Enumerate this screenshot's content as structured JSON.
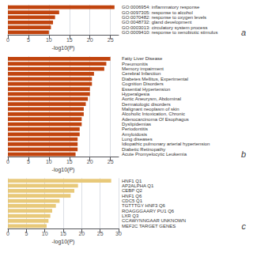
{
  "chart_data": [
    {
      "type": "bar",
      "orientation": "horizontal",
      "title": "a",
      "categories": [
        "GO:0006954: inflammatory response",
        "GO:0097305: response to alcohol",
        "GO:0070482: response to oxygen levels",
        "GO:0048732: gland development",
        "GO:0003013: circulatory system process",
        "GO:0009410: response to xenobiotic stimulus"
      ],
      "values": [
        26,
        12.5,
        11.5,
        11,
        10.5,
        10
      ],
      "color": "#c1440e",
      "xlabel": "-log10(P)",
      "xlim": [
        0,
        27
      ],
      "xticks": [
        0,
        5,
        10,
        15,
        20,
        25
      ],
      "grid": true
    },
    {
      "type": "bar",
      "orientation": "horizontal",
      "title": "b",
      "categories": [
        "Fatty Liver Disease",
        "Pneumonitis",
        "Memory impairment",
        "Cerebral Infarction",
        "Diabetes Mellitus, Experimental",
        "Cognition Disorders",
        "Essential Hypertension",
        "Hyperalgesia",
        "Aortic Aneurysm, Abdominal",
        "Dermatologic disorders",
        "Malignant neoplasm of skin",
        "Alcoholic Intoxication, Chronic",
        "Adenocarcinoma Of Esophagus",
        "Dyslipidemias",
        "Periodontitis",
        "Amyloidosis",
        "Lung diseases",
        "Idiopathic pulmonary arterial hypertension",
        "Diabetic Retinopathy",
        "Acute Promyelocytic Leukemia"
      ],
      "values": [
        25,
        24,
        23.5,
        21,
        20.5,
        20.5,
        20,
        20,
        19.5,
        19,
        18.5,
        18.5,
        18,
        18,
        17.5,
        17.5,
        17,
        17,
        17,
        16.5
      ],
      "color": "#c1440e",
      "xlabel": "-log10(P)",
      "xlim": [
        0,
        27
      ],
      "xticks": [
        0,
        5,
        10,
        15,
        20,
        25
      ],
      "grid": true
    },
    {
      "type": "bar",
      "orientation": "horizontal",
      "title": "c",
      "categories": [
        "HNF1 Q1",
        "AP2ALPHA Q1",
        "CEBP Q2",
        "HNF1 Q6",
        "CDC5 Q1",
        "TGTTTGY HNF3 Q6",
        "ROAGGGAARY PU1 Q6",
        "LXR Q3",
        "CCAWYNNGAAR UNKNOWN",
        "MEF2C TARGET GENES"
      ],
      "values": [
        28,
        19,
        18,
        17,
        14,
        13,
        12,
        11.5,
        11,
        10.5
      ],
      "color": "#e8c97a",
      "xlabel": "-log10(P)",
      "xlim": [
        0,
        30
      ],
      "xticks": [
        0,
        5,
        10,
        15,
        20,
        25,
        30
      ],
      "grid": true
    }
  ]
}
